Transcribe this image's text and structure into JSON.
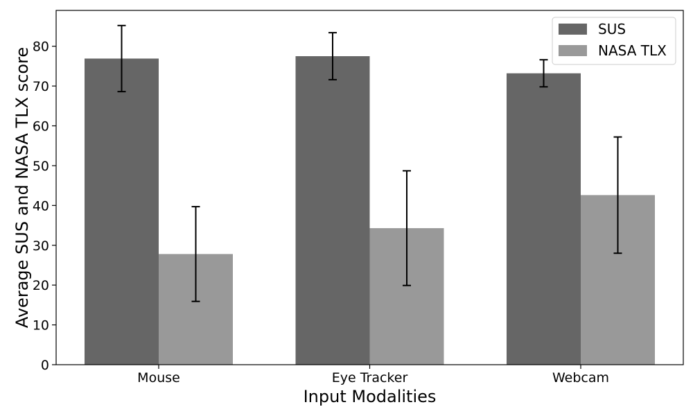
{
  "chart_data": {
    "type": "bar",
    "title": "",
    "xlabel": "Input Modalities",
    "ylabel": "Average SUS and NASA TLX score",
    "categories": [
      "Mouse",
      "Eye Tracker",
      "Webcam"
    ],
    "series": [
      {
        "name": "SUS",
        "color": "#666666",
        "values": [
          76.9,
          77.5,
          73.2
        ],
        "errors": [
          8.3,
          5.9,
          3.4
        ]
      },
      {
        "name": "NASA TLX",
        "color": "#999999",
        "values": [
          27.8,
          34.3,
          42.6
        ],
        "errors": [
          11.9,
          14.4,
          14.6
        ]
      }
    ],
    "ylim": [
      0,
      89
    ],
    "yticks": [
      "0",
      "10",
      "20",
      "30",
      "40",
      "50",
      "60",
      "70",
      "80"
    ],
    "legend_position": "top-right",
    "grid": false
  }
}
